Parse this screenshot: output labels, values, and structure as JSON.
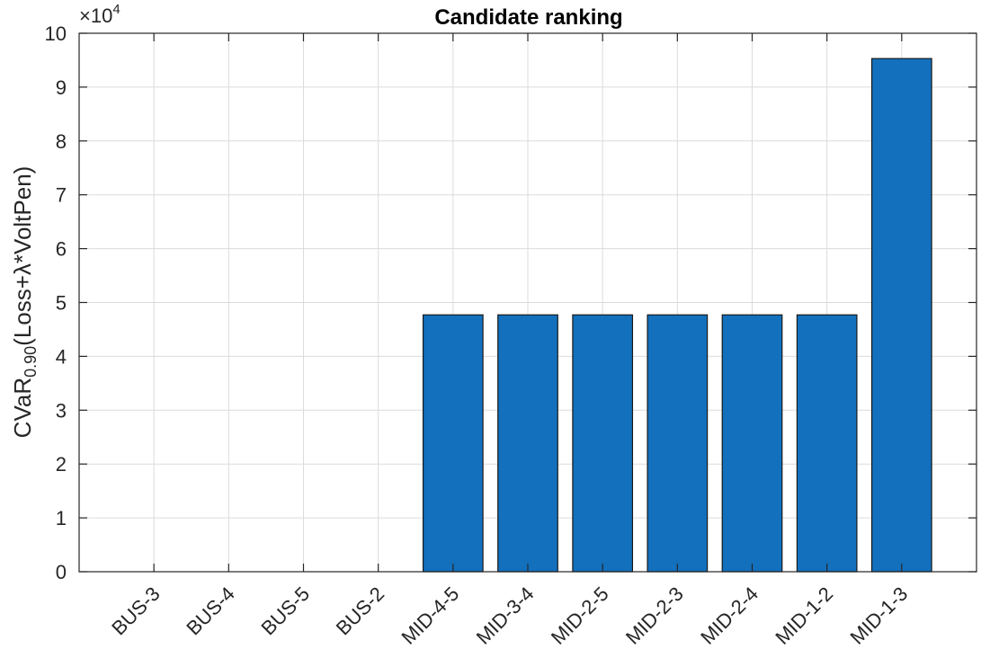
{
  "chart_data": {
    "type": "bar",
    "title": "Candidate ranking",
    "xlabel": "",
    "ylabel_parts": {
      "prefix": "CVaR",
      "subscript": "0.90",
      "suffix": "(Loss+λ*VoltPen)"
    },
    "y_multiplier": {
      "base": "×10",
      "exponent": "4"
    },
    "categories": [
      "BUS-3",
      "BUS-4",
      "BUS-5",
      "BUS-2",
      "MID-4-5",
      "MID-3-4",
      "MID-2-5",
      "MID-2-3",
      "MID-2-4",
      "MID-1-2",
      "MID-1-3"
    ],
    "values": [
      0,
      0,
      0,
      0,
      47700,
      47700,
      47700,
      47700,
      47700,
      47700,
      95300
    ],
    "ylim": [
      0,
      100000
    ],
    "yticks": [
      0,
      10000,
      20000,
      30000,
      40000,
      50000,
      60000,
      70000,
      80000,
      90000,
      100000
    ],
    "ytick_labels": [
      "0",
      "1",
      "2",
      "3",
      "4",
      "5",
      "6",
      "7",
      "8",
      "9",
      "10"
    ],
    "grid": true,
    "bar_color": "#1270bd",
    "bar_edge_color": "#1a1a1a",
    "grid_color": "#dcdcdc",
    "axis_color": "#262626"
  }
}
